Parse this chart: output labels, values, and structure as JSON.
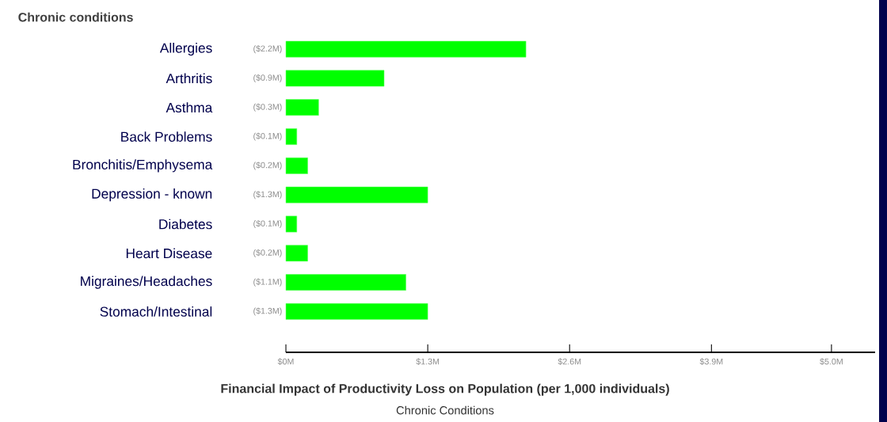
{
  "chart_data": {
    "type": "bar",
    "orientation": "horizontal",
    "ylabel": "Chronic conditions",
    "title": "Financial Impact of Productivity Loss on Population (per 1,000 individuals)",
    "subtitle": "Chronic Conditions",
    "categories": [
      "Allergies",
      "Arthritis",
      "Asthma",
      "Back Problems",
      "Bronchitis/Emphysema",
      "Depression - known",
      "Diabetes",
      "Heart Disease",
      "Migraines/Headaches",
      "Stomach/Intestinal"
    ],
    "values": [
      2.2,
      0.9,
      0.3,
      0.1,
      0.2,
      1.3,
      0.1,
      0.2,
      1.1,
      1.3
    ],
    "value_labels": [
      "($2.2M)",
      "($0.9M)",
      "($0.3M)",
      "($0.1M)",
      "($0.2M)",
      "($1.3M)",
      "($0.1M)",
      "($0.2M)",
      "($1.1M)",
      "($1.3M)"
    ],
    "color": "#00ff00",
    "xlim": [
      0,
      5.4
    ],
    "xticks": [
      {
        "value": 0,
        "label": "$0M"
      },
      {
        "value": 1.3,
        "label": "$1.3M"
      },
      {
        "value": 2.6,
        "label": "$2.6M"
      },
      {
        "value": 3.9,
        "label": "$3.9M"
      },
      {
        "value": 5.0,
        "label": "$5.0M"
      }
    ]
  }
}
